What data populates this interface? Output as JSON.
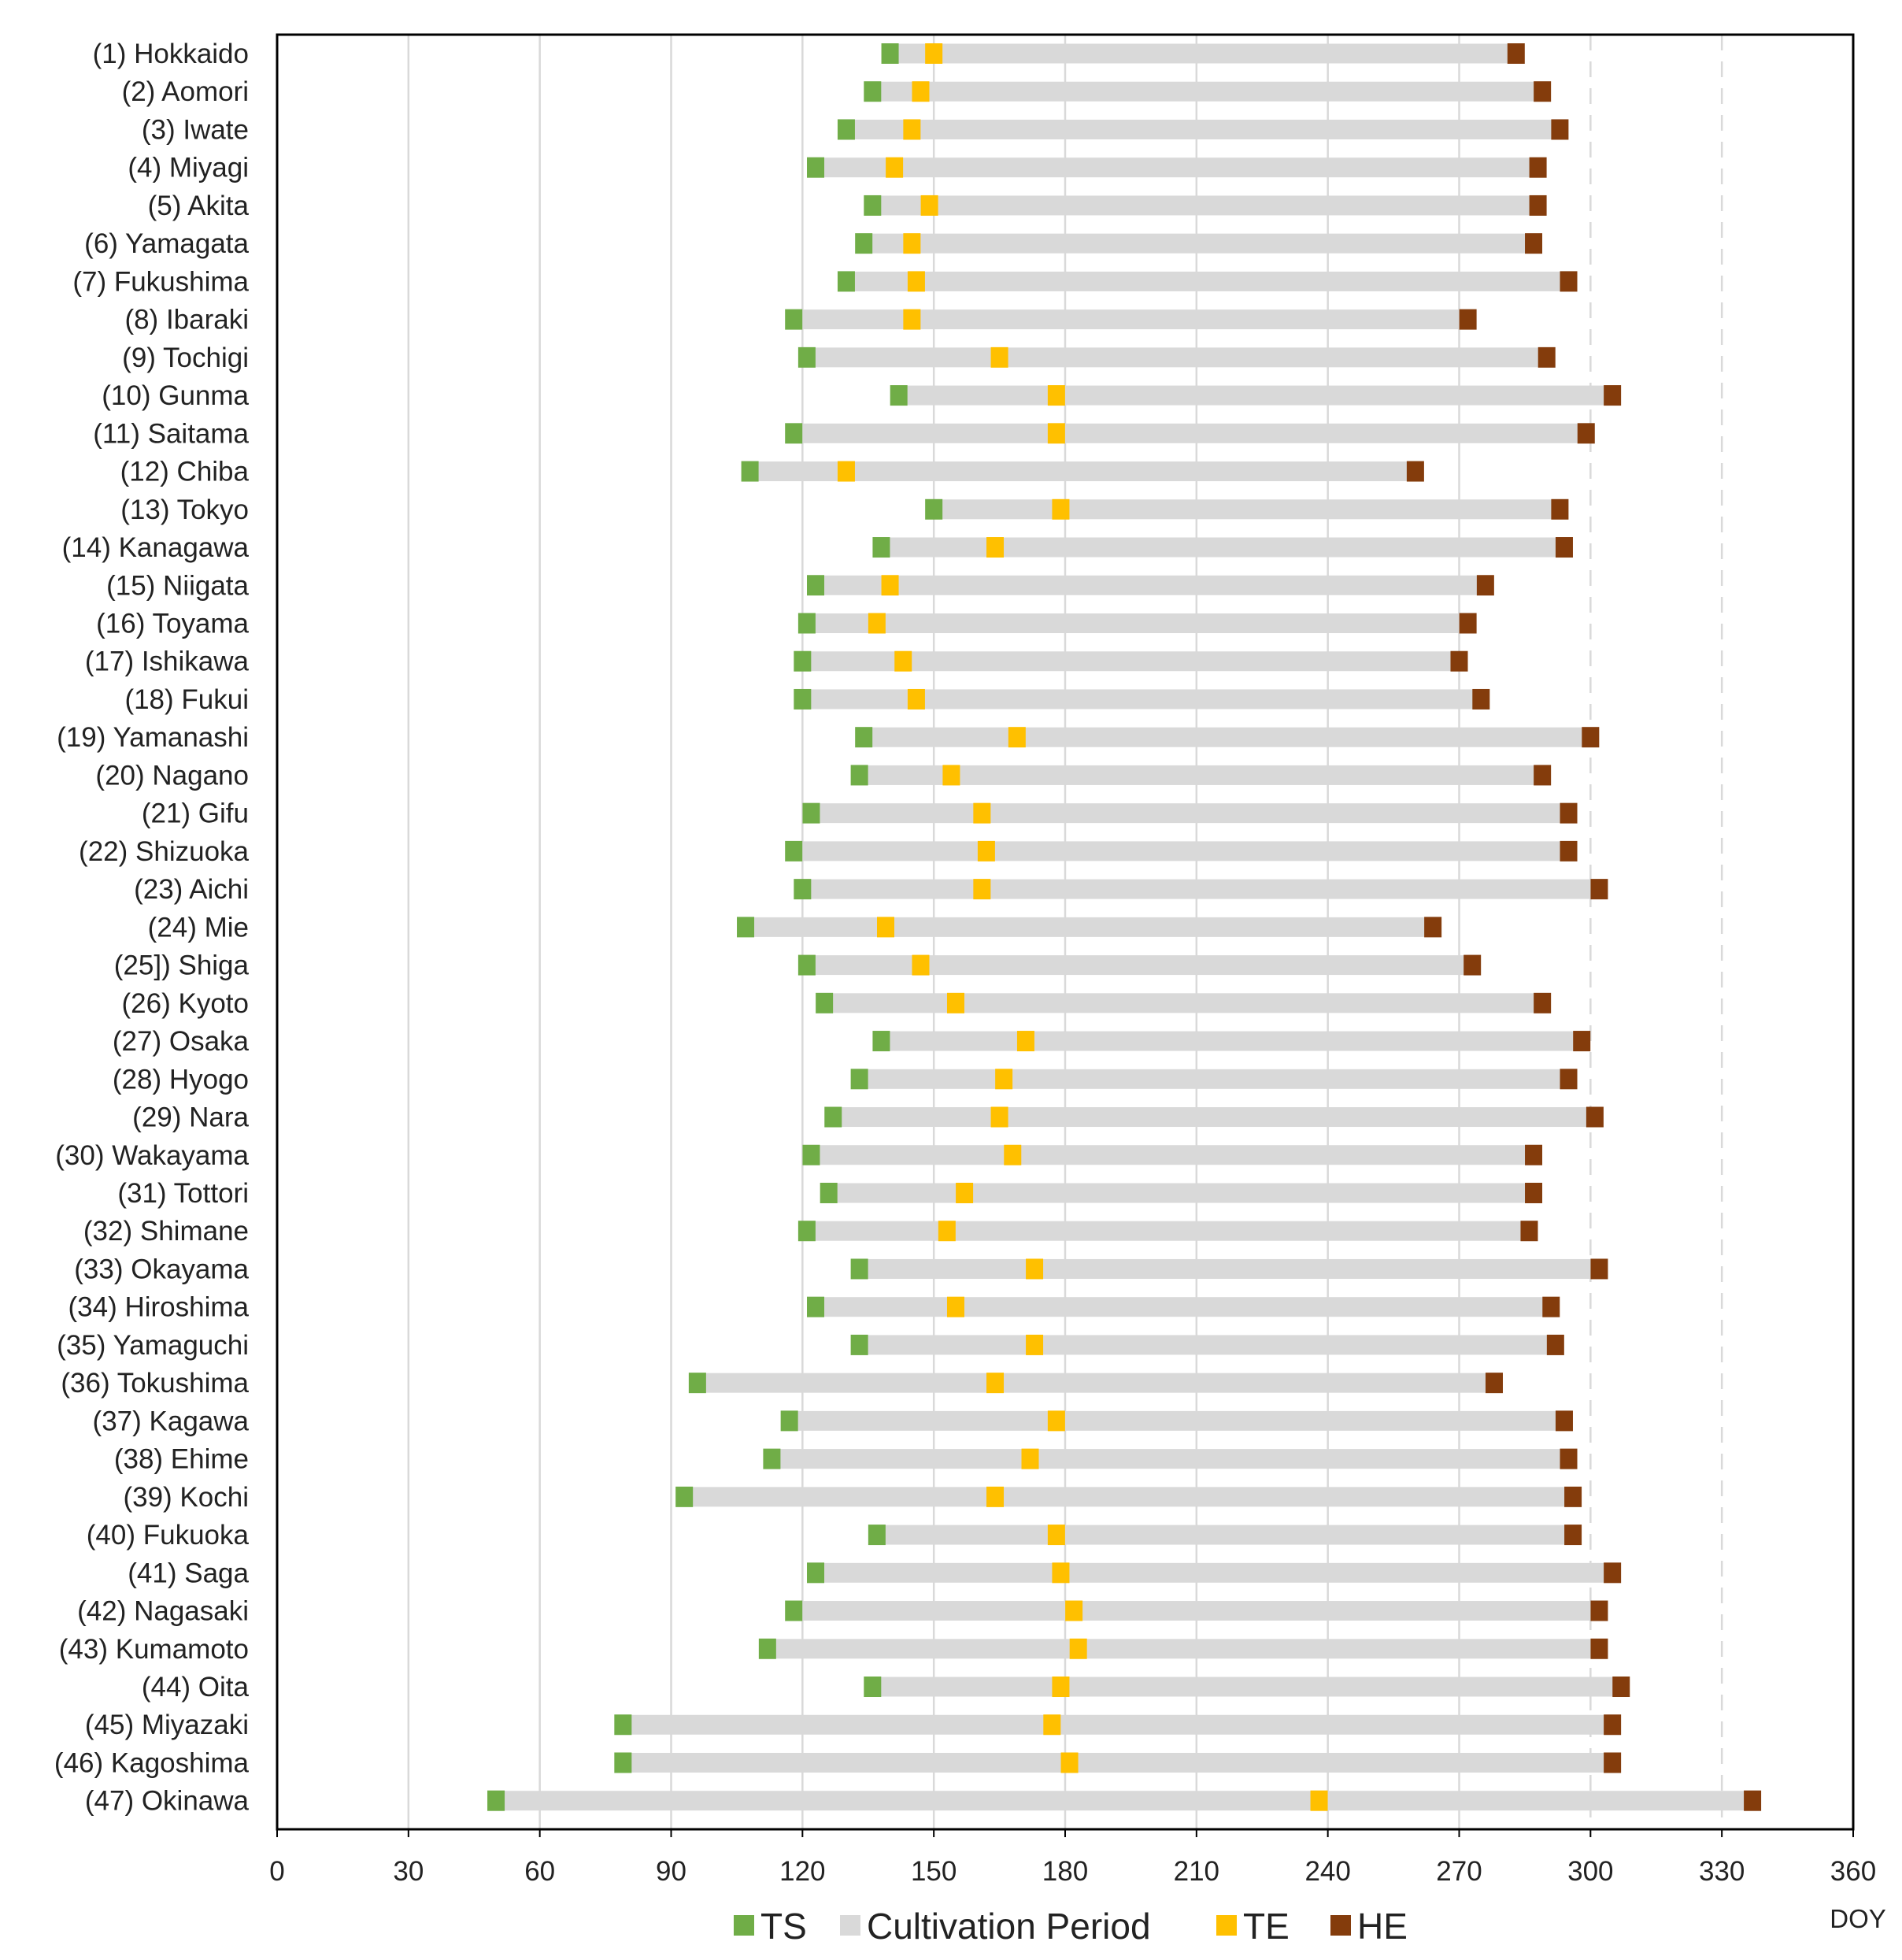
{
  "chart_data": {
    "type": "bar",
    "orientation": "horizontal",
    "xlabel": "DOY",
    "xlim": [
      0,
      360
    ],
    "xticks": [
      0,
      30,
      60,
      90,
      120,
      150,
      180,
      210,
      240,
      270,
      300,
      330,
      360
    ],
    "xtick_labels": [
      "0",
      "30",
      "60",
      "90",
      "120",
      "150",
      "180",
      "210",
      "240",
      "270",
      "300",
      "330",
      "360"
    ],
    "solid_gridlines": [
      30,
      60,
      90,
      120,
      150,
      180,
      210,
      240,
      270
    ],
    "dashed_gridlines": [
      300,
      330
    ],
    "legend": {
      "position": "bottom",
      "items": [
        {
          "key": "TS",
          "label": "TS",
          "color": "#70ad47"
        },
        {
          "key": "CP",
          "label": "Cultivation Period",
          "color": "#d9d9d9"
        },
        {
          "key": "TE",
          "label": "TE",
          "color": "#ffc000"
        },
        {
          "key": "HE",
          "label": "HE",
          "color": "#843c0c"
        }
      ]
    },
    "rows": [
      {
        "label": "(1) Hokkaido",
        "ts": 140,
        "te": 150,
        "he": 283
      },
      {
        "label": "(2) Aomori",
        "ts": 136,
        "te": 147,
        "he": 289
      },
      {
        "label": "(3) Iwate",
        "ts": 130,
        "te": 145,
        "he": 293
      },
      {
        "label": "(4) Miyagi",
        "ts": 123,
        "te": 141,
        "he": 288
      },
      {
        "label": "(5) Akita",
        "ts": 136,
        "te": 149,
        "he": 288
      },
      {
        "label": "(6) Yamagata",
        "ts": 134,
        "te": 145,
        "he": 287
      },
      {
        "label": "(7) Fukushima",
        "ts": 130,
        "te": 146,
        "he": 295
      },
      {
        "label": "(8) Ibaraki",
        "ts": 118,
        "te": 145,
        "he": 272
      },
      {
        "label": "(9) Tochigi",
        "ts": 121,
        "te": 165,
        "he": 290
      },
      {
        "label": "(10) Gunma",
        "ts": 142,
        "te": 178,
        "he": 305
      },
      {
        "label": "(11) Saitama",
        "ts": 118,
        "te": 178,
        "he": 299
      },
      {
        "label": "(12) Chiba",
        "ts": 108,
        "te": 130,
        "he": 260
      },
      {
        "label": "(13) Tokyo",
        "ts": 150,
        "te": 179,
        "he": 293
      },
      {
        "label": "(14) Kanagawa",
        "ts": 138,
        "te": 164,
        "he": 294
      },
      {
        "label": "(15) Niigata",
        "ts": 123,
        "te": 140,
        "he": 276
      },
      {
        "label": "(16) Toyama",
        "ts": 121,
        "te": 137,
        "he": 272
      },
      {
        "label": "(17) Ishikawa",
        "ts": 120,
        "te": 143,
        "he": 270
      },
      {
        "label": "(18) Fukui",
        "ts": 120,
        "te": 146,
        "he": 275
      },
      {
        "label": "(19) Yamanashi",
        "ts": 134,
        "te": 169,
        "he": 300
      },
      {
        "label": "(20) Nagano",
        "ts": 133,
        "te": 154,
        "he": 289
      },
      {
        "label": "(21) Gifu",
        "ts": 122,
        "te": 161,
        "he": 295
      },
      {
        "label": "(22) Shizuoka",
        "ts": 118,
        "te": 162,
        "he": 295
      },
      {
        "label": "(23) Aichi",
        "ts": 120,
        "te": 161,
        "he": 302
      },
      {
        "label": "(24) Mie",
        "ts": 107,
        "te": 139,
        "he": 264
      },
      {
        "label": "(25]) Shiga",
        "ts": 121,
        "te": 147,
        "he": 273
      },
      {
        "label": "(26) Kyoto",
        "ts": 125,
        "te": 155,
        "he": 289
      },
      {
        "label": "(27) Osaka",
        "ts": 138,
        "te": 171,
        "he": 298
      },
      {
        "label": "(28) Hyogo",
        "ts": 133,
        "te": 166,
        "he": 295
      },
      {
        "label": "(29) Nara",
        "ts": 127,
        "te": 165,
        "he": 301
      },
      {
        "label": "(30) Wakayama",
        "ts": 122,
        "te": 168,
        "he": 287
      },
      {
        "label": "(31) Tottori",
        "ts": 126,
        "te": 157,
        "he": 287
      },
      {
        "label": "(32) Shimane",
        "ts": 121,
        "te": 153,
        "he": 286
      },
      {
        "label": "(33) Okayama",
        "ts": 133,
        "te": 173,
        "he": 302
      },
      {
        "label": "(34) Hiroshima",
        "ts": 123,
        "te": 155,
        "he": 291
      },
      {
        "label": "(35) Yamaguchi",
        "ts": 133,
        "te": 173,
        "he": 292
      },
      {
        "label": "(36) Tokushima",
        "ts": 96,
        "te": 164,
        "he": 278
      },
      {
        "label": "(37) Kagawa",
        "ts": 117,
        "te": 178,
        "he": 294
      },
      {
        "label": "(38) Ehime",
        "ts": 113,
        "te": 172,
        "he": 295
      },
      {
        "label": "(39) Kochi",
        "ts": 93,
        "te": 164,
        "he": 296
      },
      {
        "label": "(40) Fukuoka",
        "ts": 137,
        "te": 178,
        "he": 296
      },
      {
        "label": "(41) Saga",
        "ts": 123,
        "te": 179,
        "he": 305
      },
      {
        "label": "(42) Nagasaki",
        "ts": 118,
        "te": 182,
        "he": 302
      },
      {
        "label": "(43) Kumamoto",
        "ts": 112,
        "te": 183,
        "he": 302
      },
      {
        "label": "(44) Oita",
        "ts": 136,
        "te": 179,
        "he": 307
      },
      {
        "label": "(45) Miyazaki",
        "ts": 79,
        "te": 177,
        "he": 305
      },
      {
        "label": "(46) Kagoshima",
        "ts": 79,
        "te": 181,
        "he": 305
      },
      {
        "label": "(47) Okinawa",
        "ts": 50,
        "te": 238,
        "he": 337
      }
    ]
  }
}
